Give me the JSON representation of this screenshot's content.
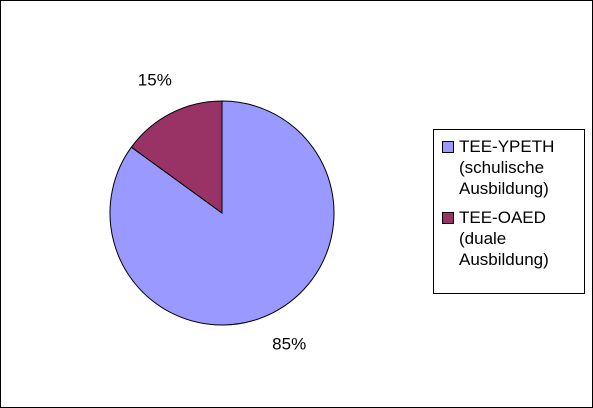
{
  "chart_data": {
    "type": "pie",
    "categories": [
      "TEE-YPETH (schulische Ausbildung)",
      "TEE-OAED (duale Ausbildung)"
    ],
    "values": [
      85,
      15
    ],
    "value_labels": [
      "85%",
      "15%"
    ],
    "colors": [
      "#9999ff",
      "#993366"
    ],
    "legend": "right"
  }
}
